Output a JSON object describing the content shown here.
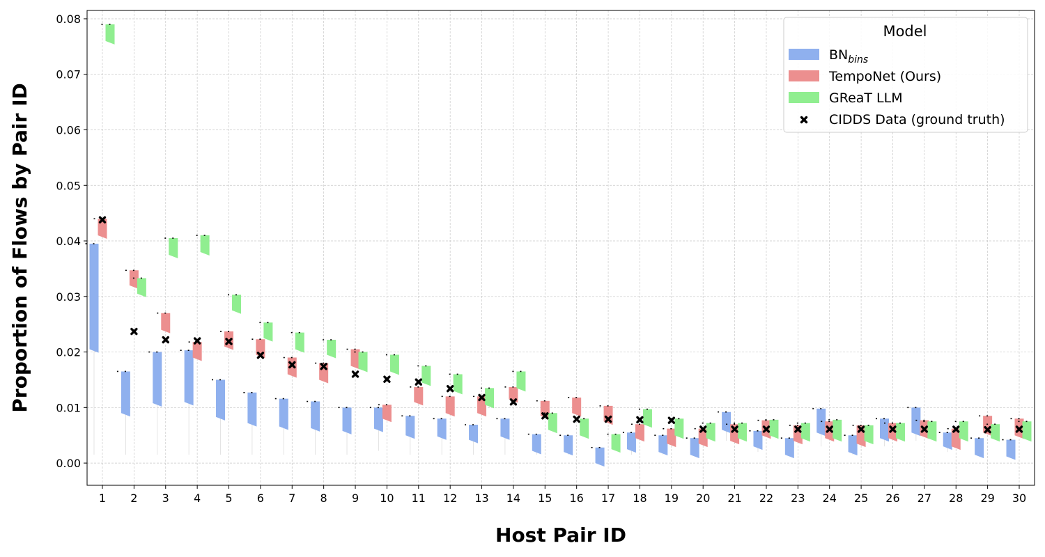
{
  "chart_data": {
    "type": "bar",
    "xlabel": "Host Pair ID",
    "ylabel": "Proportion of Flows by Pair ID",
    "ylim": [
      -0.004,
      0.0815
    ],
    "yticks": [
      "0.00",
      "0.01",
      "0.02",
      "0.03",
      "0.04",
      "0.05",
      "0.06",
      "0.07",
      "0.08"
    ],
    "categories": [
      "1",
      "2",
      "3",
      "4",
      "5",
      "6",
      "7",
      "8",
      "9",
      "10",
      "11",
      "12",
      "13",
      "14",
      "15",
      "16",
      "17",
      "18",
      "19",
      "20",
      "21",
      "22",
      "23",
      "24",
      "25",
      "26",
      "27",
      "28",
      "29",
      "30"
    ],
    "grid": true,
    "legend": {
      "title": "Model",
      "placement": "top-right",
      "entries": [
        {
          "label": "BN",
          "subscript": "bins",
          "kind": "patch",
          "color": "#8fb0ee"
        },
        {
          "label": "TempoNet (Ours)",
          "kind": "patch",
          "color": "#ec8f8f"
        },
        {
          "label": "GReaT LLM",
          "kind": "patch",
          "color": "#90ee90"
        },
        {
          "label": "CIDDS Data (ground truth)",
          "kind": "marker",
          "color": "#000000"
        }
      ]
    },
    "series": [
      {
        "name": "BN",
        "color": "#8fb0ee",
        "low": [
          0.0205,
          0.009,
          0.0108,
          0.011,
          0.0083,
          0.0072,
          0.0066,
          0.0063,
          0.0058,
          0.0062,
          0.005,
          0.0048,
          0.0042,
          0.0048,
          0.0022,
          0.002,
          0.0,
          0.0025,
          0.002,
          0.0015,
          0.006,
          0.003,
          0.0015,
          0.0055,
          0.002,
          0.0045,
          0.0055,
          0.003,
          0.0015,
          0.0012
        ],
        "high": [
          0.0395,
          0.0165,
          0.02,
          0.0203,
          0.015,
          0.0127,
          0.0116,
          0.0111,
          0.01,
          0.01,
          0.0085,
          0.008,
          0.0069,
          0.008,
          0.0052,
          0.005,
          0.0028,
          0.0055,
          0.005,
          0.0045,
          0.0092,
          0.0058,
          0.0045,
          0.0098,
          0.005,
          0.008,
          0.01,
          0.0055,
          0.0045,
          0.0042
        ],
        "whisker_low": [
          0.0015,
          0.0015,
          0.0015,
          0.0015,
          0.0015,
          0.0015,
          0.0015,
          0.0015,
          0.0015,
          0.0022,
          0.0015,
          0.0015,
          0.0015,
          0.0015,
          0.0015,
          0.0015,
          0.0,
          0.0015,
          0.0015,
          0.0012,
          0.004,
          0.002,
          0.0012,
          0.003,
          0.0015,
          0.003,
          0.004,
          0.002,
          0.0012,
          0.001
        ]
      },
      {
        "name": "TempoNet (Ours)",
        "color": "#ec8f8f",
        "low": [
          0.041,
          0.032,
          0.024,
          0.019,
          0.021,
          0.0195,
          0.016,
          0.015,
          0.0175,
          0.008,
          0.011,
          0.009,
          0.009,
          0.0115,
          0.0085,
          0.009,
          0.0075,
          0.0045,
          0.0035,
          0.0035,
          0.004,
          0.005,
          0.004,
          0.0045,
          0.0035,
          0.0045,
          0.005,
          0.003,
          0.0055,
          0.005
        ],
        "high": [
          0.044,
          0.0347,
          0.027,
          0.0218,
          0.0237,
          0.0223,
          0.019,
          0.018,
          0.0205,
          0.0105,
          0.0137,
          0.012,
          0.012,
          0.0137,
          0.0112,
          0.0118,
          0.0103,
          0.007,
          0.0062,
          0.0062,
          0.007,
          0.0077,
          0.0068,
          0.0075,
          0.0068,
          0.0072,
          0.0077,
          0.0062,
          0.0085,
          0.008
        ]
      },
      {
        "name": "GReaT LLM",
        "color": "#90ee90",
        "low": [
          0.076,
          0.0305,
          0.0375,
          0.038,
          0.0275,
          0.0225,
          0.0205,
          0.0195,
          0.017,
          0.0165,
          0.0145,
          0.013,
          0.0105,
          0.0135,
          0.006,
          0.005,
          0.0025,
          0.007,
          0.005,
          0.0045,
          0.0045,
          0.005,
          0.0045,
          0.0045,
          0.004,
          0.0045,
          0.0045,
          0.0045,
          0.0045,
          0.0045
        ],
        "high": [
          0.079,
          0.0333,
          0.0405,
          0.041,
          0.0303,
          0.0253,
          0.0235,
          0.0222,
          0.02,
          0.0195,
          0.0175,
          0.016,
          0.0135,
          0.0165,
          0.009,
          0.008,
          0.0052,
          0.0097,
          0.008,
          0.0072,
          0.0072,
          0.0078,
          0.0072,
          0.0078,
          0.0068,
          0.0072,
          0.0075,
          0.0075,
          0.007,
          0.0075
        ]
      },
      {
        "name": "CIDDS Data (ground truth)",
        "color": "#000000",
        "values": [
          0.0438,
          0.0237,
          0.0222,
          0.022,
          0.0219,
          0.0194,
          0.0177,
          0.0174,
          0.016,
          0.0151,
          0.0146,
          0.0134,
          0.0118,
          0.011,
          0.0085,
          0.0079,
          0.0079,
          0.0078,
          0.0077,
          0.0061,
          0.0061,
          0.0061,
          0.0061,
          0.0061,
          0.0061,
          0.0061,
          0.0061,
          0.0061,
          0.006,
          0.0061
        ]
      }
    ]
  }
}
